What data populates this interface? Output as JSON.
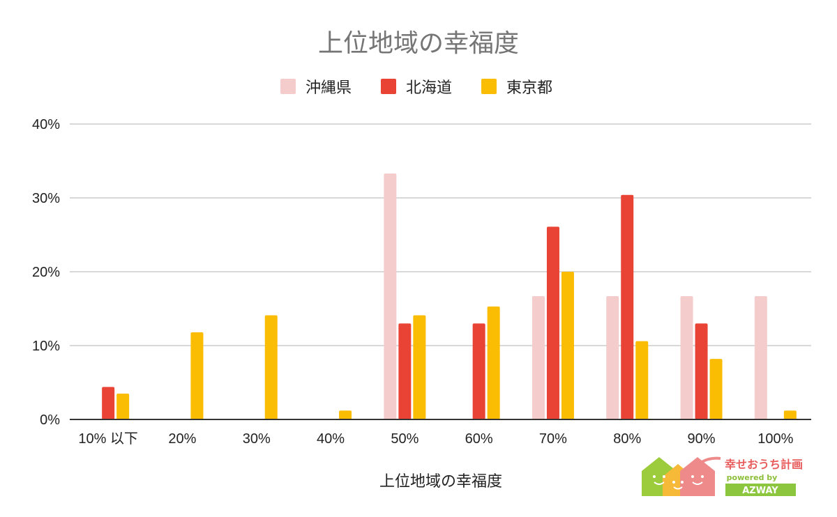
{
  "chart_data": {
    "type": "bar",
    "title": "上位地域の幸福度",
    "xlabel": "上位地域の幸福度",
    "ylabel": "",
    "categories": [
      "10% 以下",
      "20%",
      "30%",
      "40%",
      "50%",
      "60%",
      "70%",
      "80%",
      "90%",
      "100%"
    ],
    "series": [
      {
        "name": "沖縄県",
        "color": "#f4cccc",
        "values": [
          0,
          0,
          0,
          0,
          33.3,
          0,
          16.7,
          16.7,
          16.7,
          16.7
        ]
      },
      {
        "name": "北海道",
        "color": "#e84335",
        "values": [
          4.4,
          0,
          0,
          0,
          13.0,
          13.0,
          26.1,
          30.4,
          13.0,
          0
        ]
      },
      {
        "name": "東京都",
        "color": "#fbbc04",
        "values": [
          3.5,
          11.8,
          14.1,
          1.2,
          14.1,
          15.3,
          20.0,
          10.6,
          8.2,
          1.2
        ]
      }
    ],
    "ylim": [
      0,
      40
    ],
    "yticks": [
      0,
      10,
      20,
      30,
      40
    ],
    "ytick_labels": [
      "0%",
      "10%",
      "20%",
      "30%",
      "40%"
    ],
    "grid": true,
    "legend_position": "top-center"
  },
  "logo": {
    "name": "幸せおうち計画",
    "sub": "powered by",
    "brand": "AZWAY"
  }
}
